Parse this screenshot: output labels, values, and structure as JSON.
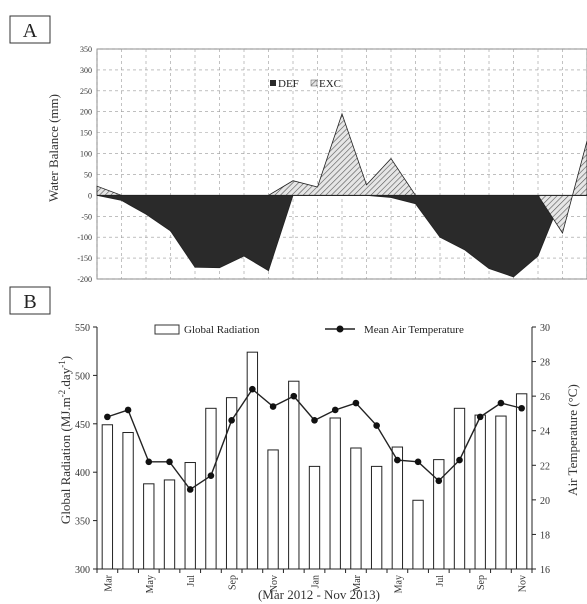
{
  "chart_data": [
    {
      "panel": "A",
      "type": "area",
      "ylabel": "Water Balance (mm)",
      "ylim": [
        -200,
        350
      ],
      "yticks": [
        350,
        300,
        250,
        200,
        150,
        100,
        50,
        0,
        -50,
        -100,
        -150,
        -200
      ],
      "grid": true,
      "legend_placement": "top-center",
      "series": [
        {
          "name": "DEF",
          "color": "#2a2a2a",
          "values": [
            0,
            -12,
            -45,
            -85,
            -172,
            -173,
            -145,
            -180,
            0,
            0,
            0,
            0,
            -5,
            -20,
            -100,
            -130,
            -175,
            -195,
            -145,
            0,
            0
          ]
        },
        {
          "name": "EXC",
          "color": "#bdbdbd",
          "values": [
            22,
            0,
            0,
            0,
            0,
            0,
            0,
            0,
            35,
            20,
            195,
            25,
            88,
            0,
            0,
            0,
            0,
            0,
            0,
            -90,
            130
          ]
        }
      ]
    },
    {
      "panel": "B",
      "type": "bar",
      "xlabel": "(Mar 2012 - Nov 2013)",
      "ylabel": "Global Radiation (MJ.m",
      "ylabel_sup1": "-2",
      "ylabel_mid": ".day",
      "ylabel_sup2": "-1",
      "ylabel_end": ")",
      "y2label": "Air Temperature (°C)",
      "ylim": [
        300,
        550
      ],
      "yticks": [
        550,
        500,
        450,
        400,
        350,
        300
      ],
      "y2lim": [
        16,
        30
      ],
      "y2ticks": [
        30,
        28,
        26,
        24,
        22,
        20,
        18,
        16
      ],
      "legend_placement": "top",
      "x_ticklabels": [
        "Mar",
        "",
        "May",
        "",
        "Jul",
        "",
        "Sep",
        "",
        "Nov",
        "",
        "Jan",
        "",
        "Mar",
        "",
        "May",
        "",
        "Jul",
        "",
        "Sep",
        "",
        "Nov"
      ],
      "series": [
        {
          "name": "Global Radiation",
          "kind": "bar",
          "values": [
            449,
            441,
            388,
            392,
            410,
            466,
            477,
            524,
            423,
            494,
            406,
            456,
            425,
            406,
            426,
            371,
            413,
            466,
            459,
            458,
            481
          ]
        },
        {
          "name": "Mean Air Temperature",
          "kind": "line",
          "values": [
            24.8,
            25.2,
            22.2,
            22.2,
            20.6,
            21.4,
            24.6,
            26.4,
            25.4,
            26.0,
            24.6,
            25.2,
            25.6,
            24.3,
            22.3,
            22.2,
            21.1,
            22.3,
            24.8,
            25.6,
            25.3
          ]
        }
      ]
    }
  ]
}
